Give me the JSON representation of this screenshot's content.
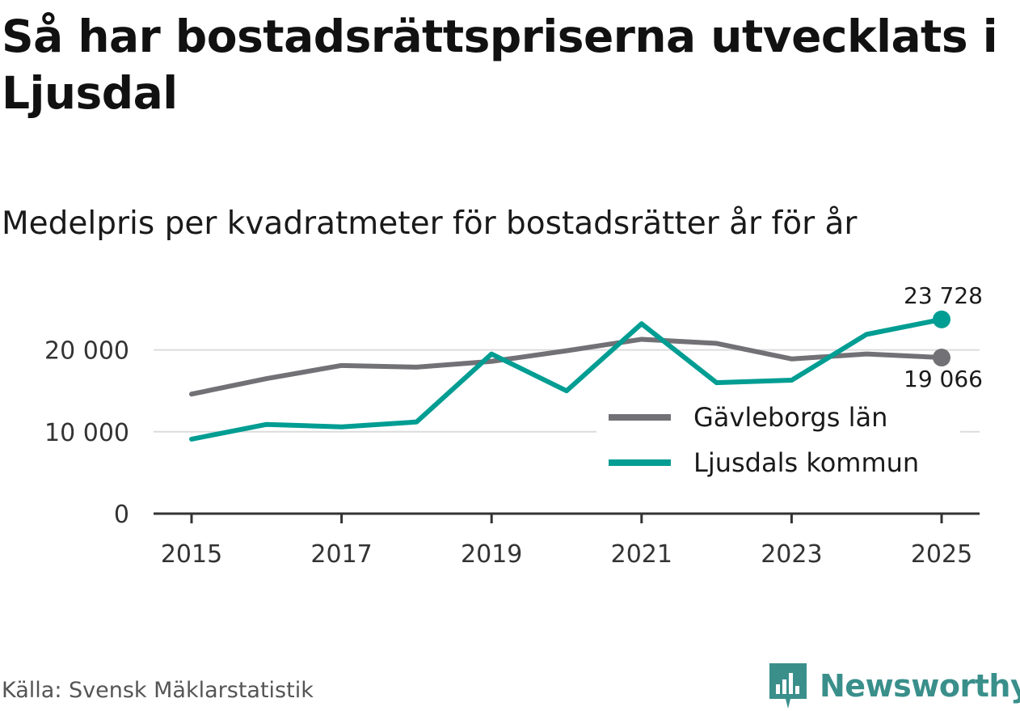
{
  "title": "Så har bostadsrättspriserna utvecklats i Ljusdal",
  "subtitle": "Medelpris per kvadratmeter för bostadsrätter år för år",
  "source": "Källa: Svensk Mäklarstatistik",
  "brand": {
    "name": "Newsworthy",
    "icon": "newsworthy-logo-icon",
    "color": "#3a8f8b"
  },
  "chart_data": {
    "type": "line",
    "title": "Så har bostadsrättspriserna utvecklats i Ljusdal",
    "subtitle": "Medelpris per kvadratmeter för bostadsrätter år för år",
    "x": [
      2015,
      2016,
      2017,
      2018,
      2019,
      2020,
      2021,
      2022,
      2023,
      2024,
      2025
    ],
    "xlim": [
      2015,
      2025
    ],
    "ylim": [
      0,
      25000
    ],
    "x_ticks": [
      2015,
      2017,
      2019,
      2021,
      2023,
      2025
    ],
    "x_tick_labels": [
      "2015",
      "2017",
      "2019",
      "2021",
      "2023",
      "2025"
    ],
    "y_ticks": [
      0,
      10000,
      20000
    ],
    "y_tick_labels": [
      "0",
      "10 000",
      "20 000"
    ],
    "grid": true,
    "legend_position": "bottom-right",
    "series": [
      {
        "name": "Gävleborgs län",
        "color": "#727176",
        "values": [
          14600,
          16500,
          18100,
          17900,
          18600,
          19900,
          21300,
          20800,
          18900,
          19500,
          19066
        ],
        "end_label": "19 066"
      },
      {
        "name": "Ljusdals kommun",
        "color": "#009d93",
        "values": [
          9100,
          10900,
          10600,
          11200,
          19500,
          15000,
          23200,
          16000,
          16300,
          21900,
          23728
        ],
        "end_label": "23 728"
      }
    ]
  }
}
